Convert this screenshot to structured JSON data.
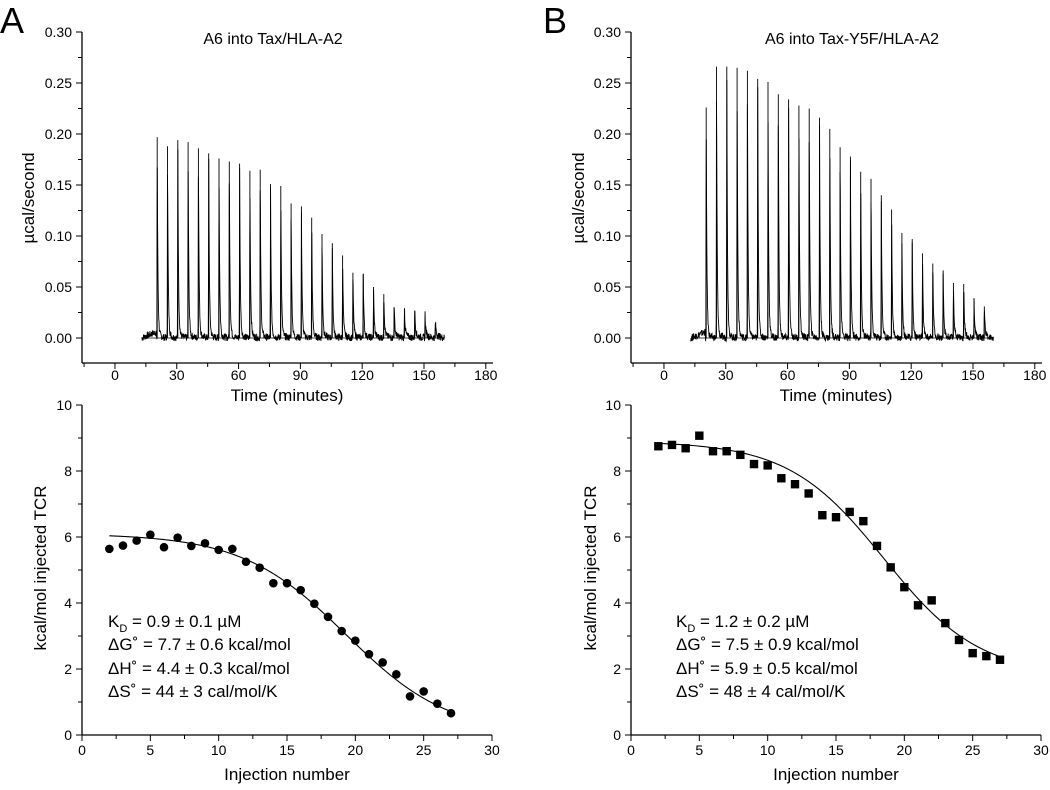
{
  "chart_data": [
    {
      "id": "A_top",
      "panel_letter": "A",
      "type": "line",
      "title": "A6 into Tax/HLA-A2",
      "xlabel": "Time (minutes)",
      "ylabel": "µcal/second",
      "xlim": [
        -16,
        183.5
      ],
      "ylim": [
        -0.0245,
        0.3
      ],
      "xticks": [
        0,
        30,
        60,
        90,
        120,
        150,
        180
      ],
      "xtick_labels": [
        "0",
        "30",
        "60",
        "90",
        "120",
        "150",
        "180"
      ],
      "yticks": [
        0,
        0.05,
        0.1,
        0.15,
        0.2,
        0.25,
        0.3
      ],
      "ytick_labels": [
        "0.00",
        "0.05",
        "0.10",
        "0.15",
        "0.20",
        "0.25",
        "0.30"
      ],
      "baseline_start": 13,
      "baseline_end": 160,
      "injection_times": [
        20.5,
        25.5,
        30.5,
        35.5,
        40.5,
        45.5,
        50.5,
        55.5,
        60.5,
        65.5,
        70.5,
        75.5,
        80.5,
        85.5,
        90.5,
        95.5,
        100.5,
        105.5,
        110.5,
        115.5,
        120.5,
        125.5,
        130.5,
        135.5,
        140.5,
        145.5,
        150.5,
        155.5
      ],
      "peak_heights": [
        0.197,
        0.188,
        0.194,
        0.192,
        0.186,
        0.181,
        0.176,
        0.173,
        0.171,
        0.164,
        0.165,
        0.151,
        0.149,
        0.132,
        0.129,
        0.118,
        0.102,
        0.093,
        0.081,
        0.064,
        0.063,
        0.05,
        0.043,
        0.03,
        0.029,
        0.027,
        0.021,
        0.014
      ]
    },
    {
      "id": "B_top",
      "panel_letter": "B",
      "type": "line",
      "title": "A6 into Tax-Y5F/HLA-A2",
      "xlabel": "Time (minutes)",
      "ylabel": "µcal/second",
      "xlim": [
        -16,
        183.5
      ],
      "ylim": [
        -0.0245,
        0.3
      ],
      "xticks": [
        0,
        30,
        60,
        90,
        120,
        150,
        180
      ],
      "xtick_labels": [
        "0",
        "30",
        "60",
        "90",
        "120",
        "150",
        "180"
      ],
      "yticks": [
        0,
        0.05,
        0.1,
        0.15,
        0.2,
        0.25,
        0.3
      ],
      "ytick_labels": [
        "0.00",
        "0.05",
        "0.10",
        "0.15",
        "0.20",
        "0.25",
        "0.30"
      ],
      "baseline_start": 13,
      "baseline_end": 160,
      "injection_times": [
        20.5,
        25.5,
        30.5,
        35.5,
        40.5,
        45.5,
        50.5,
        55.5,
        60.5,
        65.5,
        70.5,
        75.5,
        80.5,
        85.5,
        90.5,
        95.5,
        100.5,
        105.5,
        110.5,
        115.5,
        120.5,
        125.5,
        130.5,
        135.5,
        140.5,
        145.5,
        150.5,
        155.5
      ],
      "peak_heights": [
        0.226,
        0.266,
        0.266,
        0.265,
        0.262,
        0.254,
        0.251,
        0.239,
        0.234,
        0.228,
        0.225,
        0.216,
        0.205,
        0.187,
        0.178,
        0.163,
        0.156,
        0.14,
        0.126,
        0.103,
        0.097,
        0.083,
        0.073,
        0.063,
        0.054,
        0.053,
        0.039,
        0.031
      ]
    },
    {
      "id": "A_bottom",
      "type": "scatter",
      "marker": "circle",
      "xlabel": "Injection number",
      "ylabel": "kcal/mol injected TCR",
      "xlim": [
        0,
        30
      ],
      "ylim": [
        0,
        10
      ],
      "xticks": [
        0,
        5,
        10,
        15,
        20,
        25,
        30
      ],
      "xtick_labels": [
        "0",
        "5",
        "10",
        "15",
        "20",
        "25",
        "30"
      ],
      "yticks": [
        0,
        2,
        4,
        6,
        8,
        10
      ],
      "ytick_labels": [
        "0",
        "2",
        "4",
        "6",
        "8",
        "10"
      ],
      "x": [
        2,
        3,
        4,
        5,
        6,
        7,
        8,
        9,
        10,
        11,
        12,
        13,
        14,
        15,
        16,
        17,
        18,
        19,
        20,
        21,
        22,
        23,
        24,
        25,
        26,
        27
      ],
      "y": [
        5.64,
        5.74,
        5.89,
        6.07,
        5.69,
        5.98,
        5.73,
        5.81,
        5.61,
        5.64,
        5.25,
        5.07,
        4.6,
        4.6,
        4.39,
        3.98,
        3.58,
        3.15,
        2.86,
        2.45,
        2.2,
        1.84,
        1.17,
        1.32,
        0.95,
        0.66
      ],
      "fit": {
        "model": "sigmoid",
        "amplitude": 6.1,
        "offset": 0,
        "midpoint": 19.3,
        "width": 3.8,
        "x_range": [
          2,
          27
        ]
      },
      "annotations": {
        "kd_symbol": "K",
        "kd_sub": "D",
        "kd_value": " = 0.9 ± 0.1 µM",
        "dG": "ΔG˚ = 7.7 ± 0.6 kcal/mol",
        "dH": "ΔH˚ = 4.4 ± 0.3 kcal/mol",
        "dS": "ΔS˚ = 44 ± 3 cal/mol/K"
      }
    },
    {
      "id": "B_bottom",
      "type": "scatter",
      "marker": "square",
      "xlabel": "Injection number",
      "ylabel": "kcal/mol injected TCR",
      "xlim": [
        0,
        30
      ],
      "ylim": [
        0,
        10
      ],
      "xticks": [
        0,
        5,
        10,
        15,
        20,
        25,
        30
      ],
      "xtick_labels": [
        "0",
        "5",
        "10",
        "15",
        "20",
        "25",
        "30"
      ],
      "yticks": [
        0,
        2,
        4,
        6,
        8,
        10
      ],
      "ytick_labels": [
        "0",
        "2",
        "4",
        "6",
        "8",
        "10"
      ],
      "x": [
        2,
        3,
        4,
        5,
        6,
        7,
        8,
        9,
        10,
        11,
        12,
        13,
        14,
        15,
        16,
        17,
        18,
        19,
        20,
        21,
        22,
        23,
        24,
        25,
        26,
        27
      ],
      "y": [
        8.75,
        8.79,
        8.69,
        9.07,
        8.6,
        8.6,
        8.49,
        8.21,
        8.17,
        7.78,
        7.6,
        7.32,
        6.66,
        6.6,
        6.76,
        6.48,
        5.73,
        5.08,
        4.48,
        3.93,
        4.08,
        3.39,
        2.88,
        2.48,
        2.39,
        2.28
      ],
      "fit": {
        "model": "sigmoid",
        "amplitude": 7.1,
        "offset": 1.8,
        "midpoint": 18.5,
        "width": 3.5,
        "x_range": [
          2,
          27
        ]
      },
      "annotations": {
        "kd_symbol": "K",
        "kd_sub": "D",
        "kd_value": " = 1.2 ± 0.2 µM",
        "dG": "ΔG˚ = 7.5 ± 0.9 kcal/mol",
        "dH": "ΔH˚ = 5.9 ± 0.5 kcal/mol",
        "dS": "ΔS˚ = 48 ± 4 cal/mol/K"
      }
    }
  ]
}
